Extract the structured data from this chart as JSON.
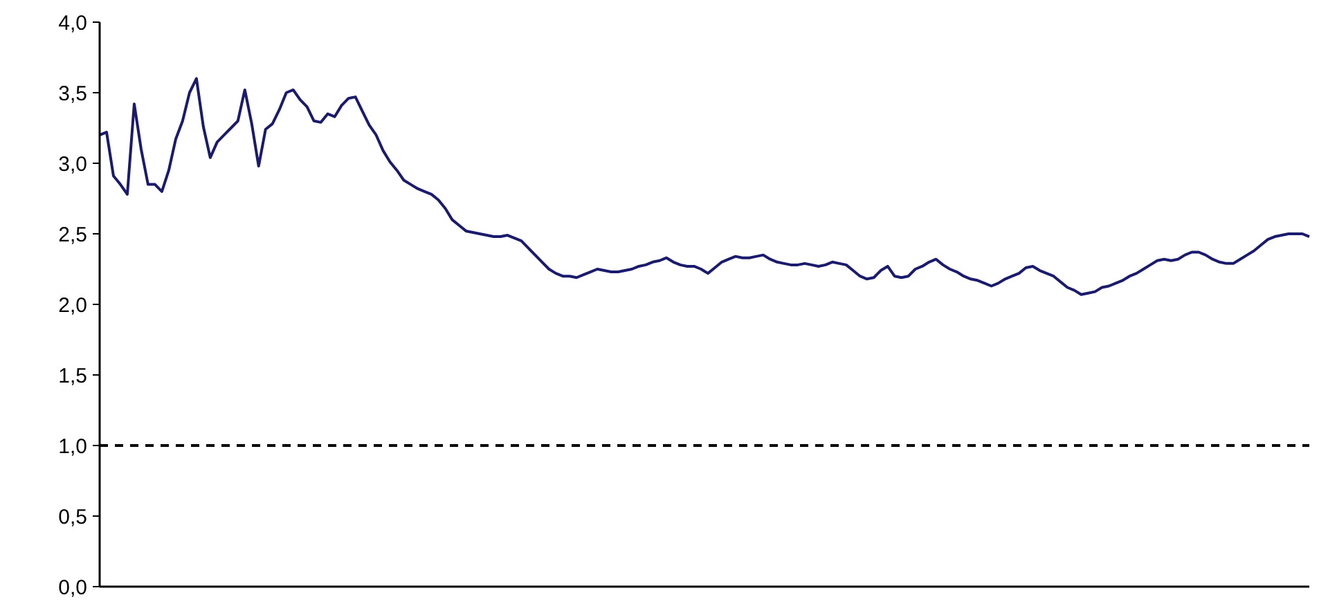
{
  "chart_data": {
    "type": "line",
    "ylim": [
      0,
      4
    ],
    "yticks": [
      {
        "value": 0,
        "label": "0,0"
      },
      {
        "value": 0.5,
        "label": "0,5"
      },
      {
        "value": 1,
        "label": "1,0"
      },
      {
        "value": 1.5,
        "label": "1,5"
      },
      {
        "value": 2,
        "label": "2,0"
      },
      {
        "value": 2.5,
        "label": "2,5"
      },
      {
        "value": 3,
        "label": "3,0"
      },
      {
        "value": 3.5,
        "label": "3,5"
      },
      {
        "value": 4,
        "label": "4,0"
      }
    ],
    "categories": [
      null,
      null,
      null,
      null,
      null,
      null,
      null,
      null,
      null,
      null,
      null,
      null,
      null,
      null,
      null,
      null,
      null,
      null,
      null,
      null,
      null,
      null,
      null,
      null,
      null,
      null,
      null,
      null,
      null,
      null,
      null,
      null,
      null,
      null,
      null,
      null,
      null,
      null,
      null,
      null,
      null,
      null,
      null,
      null,
      null,
      null,
      null,
      null,
      null,
      null,
      null,
      null,
      null,
      null,
      null,
      null,
      null,
      null,
      null,
      null,
      null,
      null,
      null,
      null,
      null,
      null,
      null,
      null,
      null,
      null,
      null,
      null,
      null,
      null,
      null,
      null,
      null,
      null,
      null,
      null,
      null,
      null,
      null,
      null,
      null,
      null,
      null,
      null,
      null,
      null,
      null,
      null,
      null,
      null,
      null,
      null,
      null,
      null,
      null,
      null,
      null,
      null,
      null,
      null,
      null,
      null,
      null,
      null,
      null,
      null,
      null,
      null,
      null,
      null,
      null,
      null,
      null,
      null,
      null,
      null,
      null,
      null,
      null,
      null,
      null,
      null,
      null,
      null,
      null,
      null,
      null,
      null,
      null,
      null,
      null,
      null,
      null,
      null,
      null,
      null,
      null,
      null,
      null,
      null,
      null,
      null,
      null,
      null,
      null,
      null,
      null,
      null,
      null,
      null,
      null,
      null,
      null,
      null,
      null,
      null,
      null,
      null,
      null,
      null,
      null,
      null,
      null,
      null,
      null,
      null,
      null,
      null,
      null,
      null,
      null,
      null
    ],
    "values": [
      3.2,
      3.22,
      2.91,
      2.85,
      2.78,
      3.42,
      3.1,
      2.85,
      2.85,
      2.8,
      2.95,
      3.17,
      3.3,
      3.5,
      3.6,
      3.26,
      3.04,
      3.15,
      3.2,
      3.25,
      3.3,
      3.52,
      3.28,
      2.98,
      3.24,
      3.28,
      3.38,
      3.5,
      3.52,
      3.45,
      3.4,
      3.3,
      3.29,
      3.35,
      3.33,
      3.41,
      3.46,
      3.47,
      3.37,
      3.27,
      3.2,
      3.09,
      3.01,
      2.95,
      2.88,
      2.85,
      2.82,
      2.8,
      2.78,
      2.74,
      2.68,
      2.6,
      2.56,
      2.52,
      2.51,
      2.5,
      2.49,
      2.48,
      2.48,
      2.49,
      2.47,
      2.45,
      2.4,
      2.35,
      2.3,
      2.25,
      2.22,
      2.2,
      2.2,
      2.19,
      2.21,
      2.23,
      2.25,
      2.24,
      2.23,
      2.23,
      2.24,
      2.25,
      2.27,
      2.28,
      2.3,
      2.31,
      2.33,
      2.3,
      2.28,
      2.27,
      2.27,
      2.25,
      2.22,
      2.26,
      2.3,
      2.32,
      2.34,
      2.33,
      2.33,
      2.34,
      2.35,
      2.32,
      2.3,
      2.29,
      2.28,
      2.28,
      2.29,
      2.28,
      2.27,
      2.28,
      2.3,
      2.29,
      2.28,
      2.24,
      2.2,
      2.18,
      2.19,
      2.24,
      2.27,
      2.2,
      2.19,
      2.2,
      2.25,
      2.27,
      2.3,
      2.32,
      2.28,
      2.25,
      2.23,
      2.2,
      2.18,
      2.17,
      2.15,
      2.13,
      2.15,
      2.18,
      2.2,
      2.22,
      2.26,
      2.27,
      2.24,
      2.22,
      2.2,
      2.16,
      2.12,
      2.1,
      2.07,
      2.08,
      2.09,
      2.12,
      2.13,
      2.15,
      2.17,
      2.2,
      2.22,
      2.25,
      2.28,
      2.31,
      2.32,
      2.31,
      2.32,
      2.35,
      2.37,
      2.37,
      2.35,
      2.32,
      2.3,
      2.29,
      2.29,
      2.32,
      2.35,
      2.38,
      2.42,
      2.46,
      2.48,
      2.49,
      2.5,
      2.5,
      2.5,
      2.48
    ],
    "color": "#1a1a6e",
    "line_style": "solid",
    "ref_lines": [
      {
        "axis": "y",
        "value": 1,
        "color": "#000000",
        "line_style": "dashed"
      }
    ]
  }
}
